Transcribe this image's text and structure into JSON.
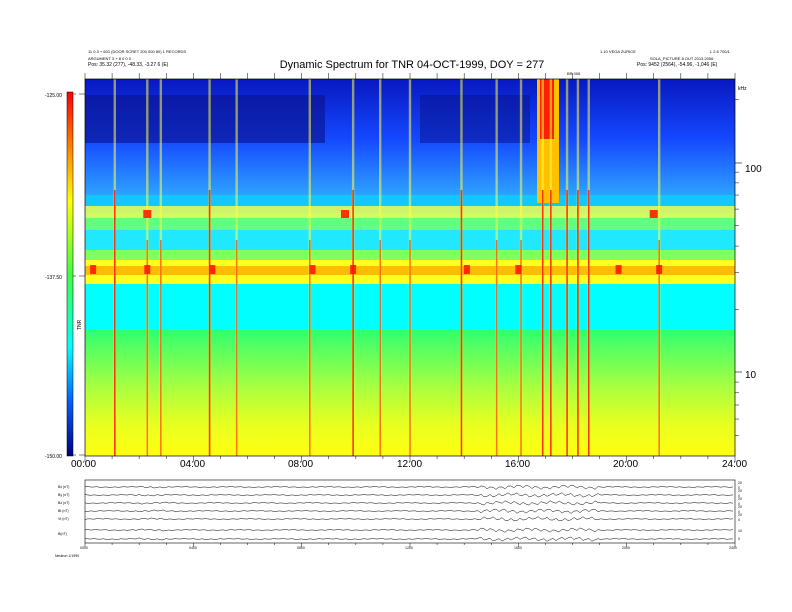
{
  "header": {
    "title": "Dynamic Spectrum for TNR 04-OCT-1999, DOY = 277",
    "left_lines": [
      "11 0.3 + 601 (DOOR SCRET 200 000 80) 1 RECORDS",
      "ARGUMENT 3 + 8 0 0 0",
      "Pos: 35.32 (277), -48.33, -3.27 6 (E)"
    ],
    "right_lines": [
      "1.10 VEGA ZURICE",
      "SOLA_PICTURE 8 OUT 2013.2006",
      "Pos: 9452 (2564), -54.96, -1,046 (E)"
    ],
    "right_id": "L 2 8 700/1",
    "top_marker": "BR 006"
  },
  "colorbar": {
    "labels": [
      "-125.00",
      "-137.50",
      "-150.00"
    ],
    "title": "TNR"
  },
  "right_axis": {
    "unit": "kHz",
    "labels": [
      "100",
      "10"
    ]
  },
  "time_axis": {
    "labels": [
      "00:00",
      "04:00",
      "08:00",
      "12:00",
      "16:00",
      "20:00",
      "24:00"
    ]
  },
  "stack": {
    "labels": [
      "Bx (nT)",
      "By (nT)",
      "Bz (nT)",
      "Bt (nT)",
      "Vt (nT)",
      "B(nT)"
    ],
    "right_labels": [
      "20",
      "0",
      "20",
      "0",
      "20",
      "0",
      "20",
      "0",
      "20",
      "0",
      "10",
      "0"
    ],
    "x_labels": [
      "0000",
      "0400",
      "0800",
      "1200",
      "1600",
      "2000",
      "2400"
    ],
    "footer": "Neutron 1/1999"
  },
  "chart_data": {
    "type": "heatmap",
    "title": "Dynamic Spectrum for TNR 04-OCT-1999, DOY = 277",
    "x_axis": {
      "label": "",
      "ticks": [
        "00:00",
        "04:00",
        "08:00",
        "12:00",
        "16:00",
        "20:00",
        "24:00"
      ],
      "range_hours": [
        0,
        24
      ]
    },
    "y_axis": {
      "label": "kHz",
      "scale": "log",
      "ticks": [
        10,
        100
      ],
      "range": [
        4,
        250
      ]
    },
    "color_scale": {
      "label": "TNR",
      "range": [
        -150.0,
        -125.0
      ],
      "ticks": [
        -125.0,
        -137.5,
        -150.0
      ]
    },
    "colors": [
      "#000080",
      "#0000ff",
      "#00a0ff",
      "#00ffff",
      "#40ff60",
      "#ffff00",
      "#ff8000",
      "#ff0000"
    ],
    "bands": [
      {
        "from_khz": 250,
        "to_khz": 70,
        "level": "low",
        "color": "#1a50ff"
      },
      {
        "from_khz": 70,
        "to_khz": 50,
        "level": "mid",
        "color": "#20e8ff"
      },
      {
        "from_khz": 50,
        "to_khz": 28,
        "level": "high",
        "color": "#ffff30"
      },
      {
        "from_khz": 28,
        "to_khz": 15,
        "level": "mid",
        "color": "#00ffff"
      },
      {
        "from_khz": 15,
        "to_khz": 4,
        "level": "high",
        "color": "#b0ff40"
      }
    ],
    "bursts_hours": [
      1.1,
      2.3,
      2.8,
      4.6,
      5.6,
      8.3,
      9.9,
      10.9,
      12.0,
      13.9,
      15.2,
      16.1,
      16.9,
      17.2,
      17.8,
      18.2,
      18.6,
      21.2
    ],
    "emission_block": {
      "from_hour": 16.7,
      "to_hour": 17.5,
      "from_khz": 75,
      "to_khz": 250
    }
  }
}
